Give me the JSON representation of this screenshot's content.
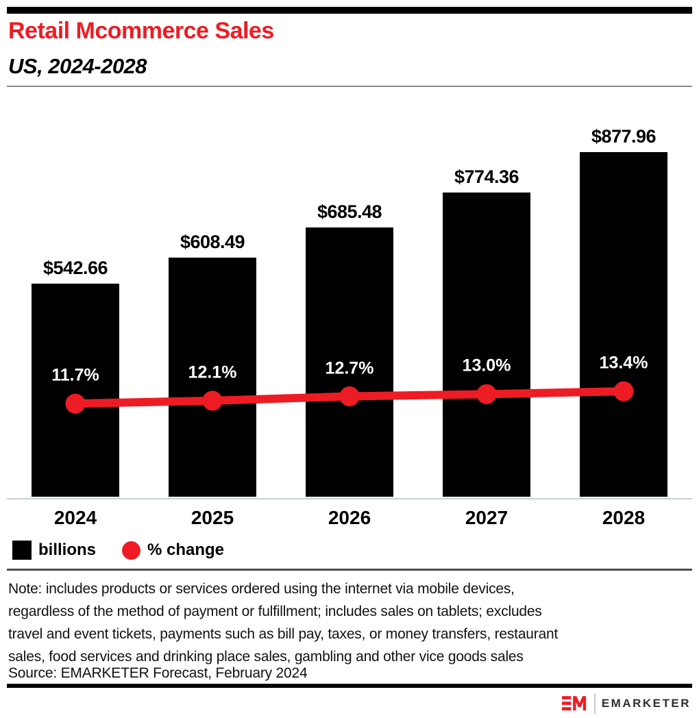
{
  "header": {
    "title": "Retail Mcommerce Sales",
    "subtitle": "US, 2024-2028",
    "accent_color": "#ed1c24"
  },
  "chart_data": {
    "type": "bar",
    "title": "Retail Mcommerce Sales",
    "subtitle": "US, 2024-2028",
    "categories": [
      "2024",
      "2025",
      "2026",
      "2027",
      "2028"
    ],
    "series": [
      {
        "name": "billions",
        "type": "bar",
        "color": "#000000",
        "values": [
          542.66,
          608.49,
          685.48,
          774.36,
          877.96
        ],
        "data_labels": [
          "$542.66",
          "$608.49",
          "$685.48",
          "$774.36",
          "$877.96"
        ]
      },
      {
        "name": "% change",
        "type": "line",
        "color": "#ed1c24",
        "values": [
          11.7,
          12.1,
          12.7,
          13.0,
          13.4
        ],
        "data_labels": [
          "11.7%",
          "12.1%",
          "12.7%",
          "13.0%",
          "13.4%"
        ]
      }
    ],
    "xlabel": "",
    "ylabel": "",
    "ylim": [
      0,
      950
    ],
    "grid": false,
    "legend_position": "bottom-left"
  },
  "legend": {
    "items": [
      {
        "label": "billions",
        "swatch": "square",
        "color": "#000000"
      },
      {
        "label": "% change",
        "swatch": "circle",
        "color": "#ed1c24"
      }
    ]
  },
  "note": {
    "lines": [
      "Note: includes products or services ordered using the internet via mobile devices,",
      "regardless of the method of payment or fulfillment; includes sales on tablets; excludes",
      "travel and event tickets, payments such as bill pay, taxes, or money transfers, restaurant",
      "sales, food services and drinking place sales, gambling and other vice goods sales"
    ]
  },
  "source": "Source: EMARKETER Forecast, February 2024",
  "footer": {
    "logo": "EM-logo",
    "brand": "EMARKETER"
  }
}
